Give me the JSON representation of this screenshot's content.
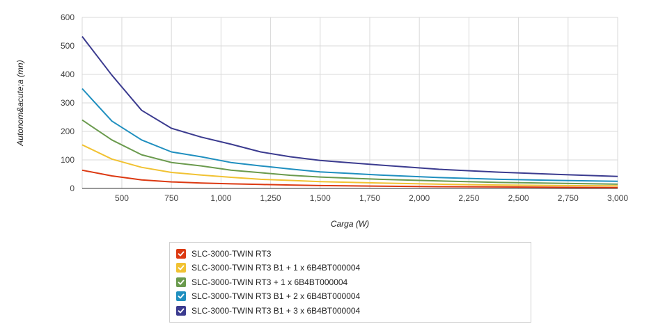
{
  "chart_data": {
    "type": "line",
    "xlabel": "Carga (W)",
    "ylabel": "Autonom&acute;a (mn)",
    "xlim": [
      300,
      3000
    ],
    "ylim": [
      0,
      600
    ],
    "x_ticks": [
      500,
      750,
      1000,
      1250,
      1500,
      1750,
      2000,
      2250,
      2500,
      2750,
      3000
    ],
    "x_tick_labels": [
      "500",
      "750",
      "1,000",
      "1,250",
      "1,500",
      "1,750",
      "2,000",
      "2,250",
      "2,500",
      "2,750",
      "3,000"
    ],
    "y_ticks": [
      0,
      100,
      200,
      300,
      400,
      500,
      600
    ],
    "y_tick_labels": [
      "0",
      "100",
      "200",
      "300",
      "400",
      "500",
      "600"
    ],
    "grid": true,
    "legend_position": "bottom",
    "series": [
      {
        "name": "SLC-3000-TWIN RT3",
        "color": "#dc3912",
        "x": [
          300,
          450,
          600,
          750,
          900,
          1050,
          1200,
          1350,
          1500,
          1800,
          2100,
          2400,
          2700,
          3000
        ],
        "y": [
          64,
          44,
          30,
          23,
          19,
          16,
          14,
          12,
          10,
          8,
          6,
          5,
          4,
          3
        ]
      },
      {
        "name": "SLC-3000-TWIN RT3 B1 + 1 x 6B4BT000004",
        "color": "#f1c232",
        "x": [
          300,
          450,
          600,
          750,
          900,
          1050,
          1200,
          1350,
          1500,
          1800,
          2100,
          2400,
          2700,
          3000
        ],
        "y": [
          153,
          103,
          74,
          56,
          47,
          39,
          32,
          28,
          24,
          19,
          15,
          12,
          10,
          9
        ]
      },
      {
        "name": "SLC-3000-TWIN RT3 + 1 x 6B4BT000004",
        "color": "#6a9a4d",
        "x": [
          300,
          450,
          600,
          750,
          900,
          1050,
          1200,
          1350,
          1500,
          1800,
          2100,
          2400,
          2700,
          3000
        ],
        "y": [
          240,
          170,
          118,
          91,
          79,
          64,
          55,
          46,
          40,
          32,
          26,
          21,
          18,
          15
        ]
      },
      {
        "name": "SLC-3000-TWIN RT3 B1 + 2 x 6B4BT000004",
        "color": "#1f8fbf",
        "x": [
          300,
          450,
          600,
          750,
          900,
          1050,
          1200,
          1350,
          1500,
          1800,
          2100,
          2400,
          2700,
          3000
        ],
        "y": [
          350,
          236,
          170,
          128,
          111,
          91,
          79,
          68,
          58,
          47,
          38,
          32,
          28,
          25
        ]
      },
      {
        "name": "SLC-3000-TWIN RT3 B1 + 3 x 6B4BT000004",
        "color": "#3b3b8f",
        "x": [
          300,
          450,
          600,
          750,
          900,
          1050,
          1200,
          1350,
          1500,
          1800,
          2100,
          2400,
          2700,
          3000
        ],
        "y": [
          533,
          397,
          274,
          211,
          180,
          155,
          128,
          111,
          98,
          82,
          67,
          57,
          49,
          42
        ]
      }
    ]
  }
}
